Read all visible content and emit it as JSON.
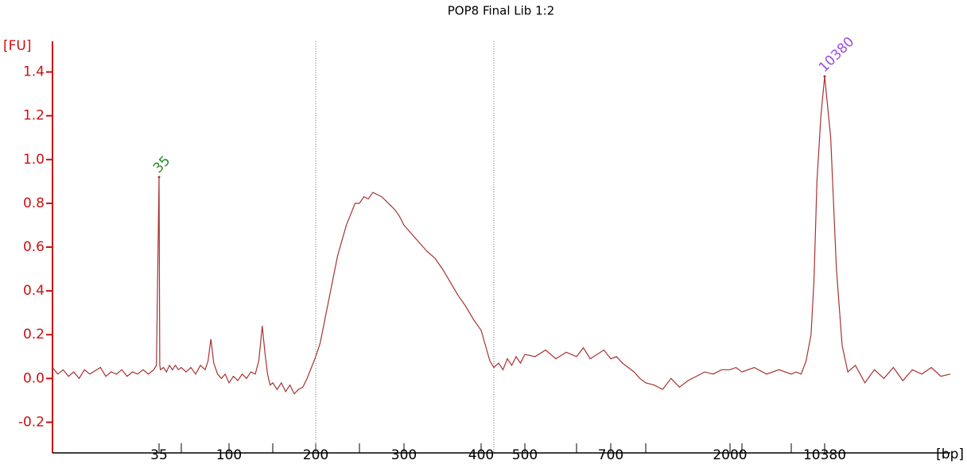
{
  "chart_data": {
    "type": "line",
    "title": "POP8 Final Lib 1:2",
    "y_label": "[FU]",
    "x_label": "[bp]",
    "color": "#a83232",
    "axis_color": "#cc1111",
    "xlim": [
      15,
      17000
    ],
    "ylim": [
      -0.34,
      1.54
    ],
    "xticks": [
      35,
      100,
      200,
      300,
      400,
      500,
      700,
      2000,
      10380
    ],
    "xticks_minor": [
      50,
      150,
      250,
      600,
      1000,
      3000,
      7000
    ],
    "yticks": [
      {
        "value": -0.2,
        "label": "-0.2"
      },
      {
        "value": 0,
        "label": "0.0"
      },
      0.2,
      0.4,
      0.6,
      0.8,
      {
        "value": 1,
        "label": "1.0"
      },
      1.2,
      1.4
    ],
    "region_bounds": [
      200,
      429
    ],
    "peaks": [
      {
        "x": 35,
        "value": 0.92,
        "color": "#2a8a2a"
      },
      {
        "x": 10380,
        "value": 1.38,
        "color": "#9a4de8"
      }
    ],
    "x": [
      15,
      16,
      17,
      18,
      19,
      20,
      21,
      22,
      24,
      25,
      26,
      27,
      28,
      29,
      30,
      31,
      32,
      33,
      34,
      34.5,
      35,
      35.5,
      36,
      38,
      40,
      42,
      44,
      46,
      48,
      50,
      55,
      60,
      65,
      70,
      75,
      78,
      81,
      84,
      88,
      92,
      96,
      100,
      105,
      110,
      115,
      120,
      125,
      130,
      134,
      138,
      141,
      144,
      147,
      150,
      155,
      160,
      165,
      170,
      175,
      180,
      185,
      190,
      195,
      200,
      205,
      210,
      215,
      220,
      225,
      230,
      235,
      240,
      245,
      250,
      255,
      260,
      265,
      270,
      275,
      280,
      285,
      290,
      295,
      300,
      310,
      320,
      330,
      340,
      350,
      360,
      370,
      380,
      390,
      400,
      410,
      420,
      429,
      440,
      450,
      460,
      470,
      480,
      490,
      500,
      520,
      540,
      560,
      580,
      600,
      620,
      640,
      660,
      680,
      700,
      750,
      800,
      850,
      900,
      950,
      1000,
      1100,
      1200,
      1300,
      1400,
      1500,
      1600,
      1700,
      1800,
      1900,
      2000,
      2500,
      3000,
      4000,
      5000,
      6000,
      7000,
      7500,
      8000,
      8500,
      9000,
      9300,
      9600,
      10000,
      10380,
      10700,
      11000,
      11300,
      11600,
      12000,
      12500,
      13000,
      13500,
      14000,
      14500,
      15000,
      15500,
      16000,
      16500,
      17000
    ],
    "values": [
      0.05,
      0.02,
      0.04,
      0.01,
      0.03,
      0.0,
      0.04,
      0.02,
      0.05,
      0.01,
      0.03,
      0.02,
      0.04,
      0.01,
      0.03,
      0.02,
      0.04,
      0.02,
      0.04,
      0.06,
      0.92,
      0.06,
      0.04,
      0.05,
      0.03,
      0.06,
      0.04,
      0.06,
      0.04,
      0.05,
      0.03,
      0.05,
      0.02,
      0.06,
      0.04,
      0.08,
      0.18,
      0.07,
      0.02,
      0.0,
      0.02,
      -0.02,
      0.01,
      -0.01,
      0.02,
      0.0,
      0.03,
      0.02,
      0.08,
      0.24,
      0.12,
      0.02,
      -0.03,
      -0.02,
      -0.05,
      -0.02,
      -0.06,
      -0.03,
      -0.07,
      -0.05,
      -0.04,
      0.0,
      0.05,
      0.1,
      0.16,
      0.26,
      0.36,
      0.46,
      0.56,
      0.63,
      0.7,
      0.75,
      0.8,
      0.8,
      0.83,
      0.82,
      0.85,
      0.84,
      0.83,
      0.81,
      0.79,
      0.77,
      0.74,
      0.7,
      0.66,
      0.62,
      0.58,
      0.55,
      0.5,
      0.44,
      0.38,
      0.33,
      0.27,
      0.22,
      0.15,
      0.08,
      0.05,
      0.07,
      0.04,
      0.09,
      0.06,
      0.1,
      0.07,
      0.11,
      0.1,
      0.13,
      0.09,
      0.12,
      0.1,
      0.14,
      0.09,
      0.11,
      0.13,
      0.09,
      0.1,
      0.07,
      0.05,
      0.03,
      0.0,
      -0.02,
      -0.03,
      -0.05,
      0.0,
      -0.04,
      -0.01,
      0.01,
      0.03,
      0.02,
      0.04,
      0.04,
      0.05,
      0.03,
      0.05,
      0.02,
      0.04,
      0.02,
      0.03,
      0.02,
      0.08,
      0.2,
      0.45,
      0.9,
      1.2,
      1.38,
      1.1,
      0.5,
      0.15,
      0.03,
      0.06,
      -0.02,
      0.04,
      0.0,
      0.05,
      -0.01,
      0.04,
      0.02,
      0.05,
      0.01,
      0.02
    ]
  }
}
